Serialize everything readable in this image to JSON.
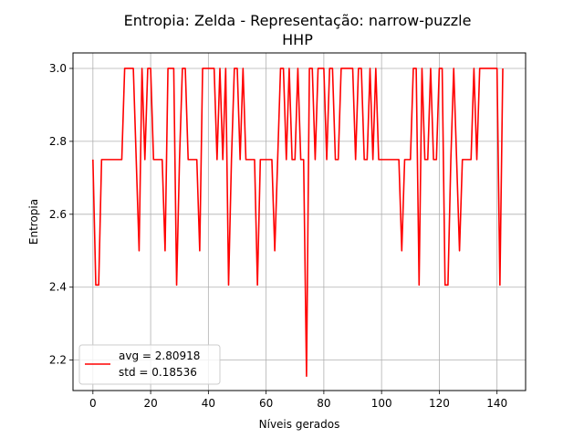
{
  "chart_data": {
    "type": "line",
    "title": "Entropia: Zelda - Representação: narrow-puzzle",
    "subtitle": "HHP",
    "xlabel": "Níveis gerados",
    "ylabel": "Entropia",
    "xlim": [
      -6.9,
      149.9
    ],
    "ylim": [
      2.1165,
      3.0425
    ],
    "xticks": [
      0,
      20,
      40,
      60,
      80,
      100,
      120,
      140
    ],
    "xtick_labels": [
      "0",
      "20",
      "40",
      "60",
      "80",
      "100",
      "120",
      "140"
    ],
    "yticks": [
      2.2,
      2.4,
      2.6,
      2.8,
      3.0
    ],
    "ytick_labels": [
      "2.2",
      "2.4",
      "2.6",
      "2.8",
      "3.0"
    ],
    "grid": true,
    "legend_position": "lower-left",
    "series": [
      {
        "color": "#ff0000",
        "x": [
          0,
          1,
          2,
          3,
          4,
          5,
          6,
          7,
          8,
          9,
          10,
          11,
          12,
          13,
          14,
          15,
          16,
          17,
          18,
          19,
          20,
          21,
          22,
          23,
          24,
          25,
          26,
          27,
          28,
          29,
          30,
          31,
          32,
          33,
          34,
          35,
          36,
          37,
          38,
          39,
          40,
          41,
          42,
          43,
          44,
          45,
          46,
          47,
          48,
          49,
          50,
          51,
          52,
          53,
          54,
          55,
          56,
          57,
          58,
          59,
          60,
          61,
          62,
          63,
          64,
          65,
          66,
          67,
          68,
          69,
          70,
          71,
          72,
          73,
          74,
          75,
          76,
          77,
          78,
          79,
          80,
          81,
          82,
          83,
          84,
          85,
          86,
          87,
          88,
          89,
          90,
          91,
          92,
          93,
          94,
          95,
          96,
          97,
          98,
          99,
          100,
          101,
          102,
          103,
          104,
          105,
          106,
          107,
          108,
          109,
          110,
          111,
          112,
          113,
          114,
          115,
          116,
          117,
          118,
          119,
          120,
          121,
          122,
          123,
          124,
          125,
          126,
          127,
          128,
          129,
          130,
          131,
          132,
          133,
          134,
          135,
          136,
          137,
          138,
          139,
          140,
          141,
          142
        ],
        "y": [
          2.75,
          2.406,
          2.406,
          2.75,
          2.75,
          2.75,
          2.75,
          2.75,
          2.75,
          2.75,
          2.75,
          3.0,
          3.0,
          3.0,
          3.0,
          2.75,
          2.5,
          3.0,
          2.75,
          3.0,
          3.0,
          2.75,
          2.75,
          2.75,
          2.75,
          2.5,
          3.0,
          3.0,
          3.0,
          2.406,
          2.75,
          3.0,
          3.0,
          2.75,
          2.75,
          2.75,
          2.75,
          2.5,
          3.0,
          3.0,
          3.0,
          3.0,
          3.0,
          2.75,
          3.0,
          2.75,
          3.0,
          2.406,
          2.75,
          3.0,
          3.0,
          2.75,
          3.0,
          2.75,
          2.75,
          2.75,
          2.75,
          2.406,
          2.75,
          2.75,
          2.75,
          2.75,
          2.75,
          2.5,
          2.75,
          3.0,
          3.0,
          2.75,
          3.0,
          2.75,
          2.75,
          3.0,
          2.75,
          2.75,
          2.156,
          3.0,
          3.0,
          2.75,
          3.0,
          3.0,
          3.0,
          2.75,
          3.0,
          3.0,
          2.75,
          2.75,
          3.0,
          3.0,
          3.0,
          3.0,
          3.0,
          2.75,
          3.0,
          3.0,
          2.75,
          2.75,
          3.0,
          2.75,
          3.0,
          2.75,
          2.75,
          2.75,
          2.75,
          2.75,
          2.75,
          2.75,
          2.75,
          2.5,
          2.75,
          2.75,
          2.75,
          3.0,
          3.0,
          2.406,
          3.0,
          2.75,
          2.75,
          3.0,
          2.75,
          2.75,
          3.0,
          3.0,
          2.406,
          2.406,
          2.75,
          3.0,
          2.75,
          2.5,
          2.75,
          2.75,
          2.75,
          2.75,
          3.0,
          2.75,
          3.0,
          3.0,
          3.0,
          3.0,
          3.0,
          3.0,
          3.0,
          2.406,
          3.0
        ]
      }
    ],
    "legend": [
      "avg = 2.80918",
      "std = 0.18536"
    ]
  }
}
